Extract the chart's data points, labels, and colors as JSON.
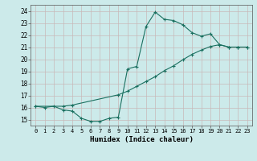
{
  "title": "",
  "xlabel": "Humidex (Indice chaleur)",
  "ylabel": "",
  "background_color": "#cceaea",
  "grid_color": "#b8d8d8",
  "line_color": "#1a7060",
  "xlim": [
    -0.5,
    23.5
  ],
  "ylim": [
    14.5,
    24.5
  ],
  "xticks": [
    0,
    1,
    2,
    3,
    4,
    5,
    6,
    7,
    8,
    9,
    10,
    11,
    12,
    13,
    14,
    15,
    16,
    17,
    18,
    19,
    20,
    21,
    22,
    23
  ],
  "yticks": [
    15,
    16,
    17,
    18,
    19,
    20,
    21,
    22,
    23,
    24
  ],
  "curve1_x": [
    0,
    1,
    2,
    3,
    4,
    5,
    6,
    7,
    8,
    9,
    10,
    11,
    12,
    13,
    14,
    15,
    16,
    17,
    18,
    19,
    20,
    21,
    22,
    23
  ],
  "curve1_y": [
    16.1,
    16.0,
    16.1,
    15.8,
    15.7,
    15.1,
    14.85,
    14.85,
    15.1,
    15.2,
    19.2,
    19.4,
    22.7,
    23.9,
    23.3,
    23.2,
    22.85,
    22.2,
    21.9,
    22.1,
    21.2,
    21.0,
    21.0,
    21.0
  ],
  "curve2_x": [
    0,
    3,
    4,
    9,
    10,
    11,
    12,
    13,
    14,
    15,
    16,
    17,
    18,
    19,
    20,
    21,
    22,
    23
  ],
  "curve2_y": [
    16.1,
    16.1,
    16.2,
    17.05,
    17.35,
    17.75,
    18.15,
    18.55,
    19.05,
    19.45,
    19.95,
    20.4,
    20.75,
    21.05,
    21.2,
    21.0,
    21.0,
    21.0
  ]
}
